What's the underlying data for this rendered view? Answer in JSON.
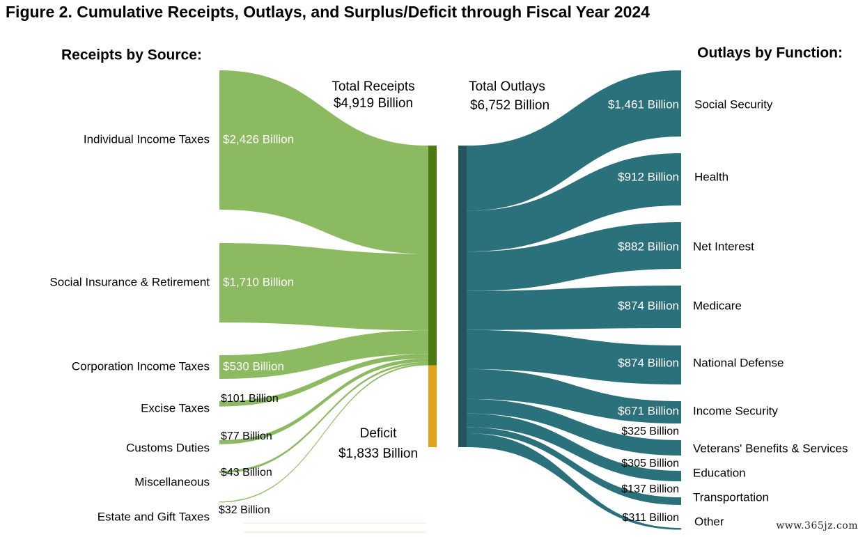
{
  "title": "Figure 2. Cumulative Receipts, Outlays, and Surplus/Deficit through Fiscal Year 2024",
  "watermark": "www.365jz.com",
  "colors": {
    "receipts_flow": "#8cba60",
    "receipts_bar": "#4d7a10",
    "deficit_bar": "#e0a21a",
    "outlays_flow": "#2b717c",
    "outlays_bar": "#23555c"
  },
  "chart_data": {
    "type": "sankey",
    "title": "Figure 2. Cumulative Receipts, Outlays, and Surplus/Deficit through Fiscal Year 2024",
    "units": "Billion",
    "receipts_heading": "Receipts by Source:",
    "outlays_heading": "Outlays by Function:",
    "total_receipts": {
      "label_line1": "Total Receipts",
      "label_line2": "$4,919 Billion",
      "value": 4919
    },
    "total_outlays": {
      "label_line1": "Total Outlays",
      "label_line2": "$6,752 Billion",
      "value": 6752
    },
    "deficit": {
      "label_line1": "Deficit",
      "label_line2": "$1,833 Billion",
      "value": 1833
    },
    "receipts": [
      {
        "name": "Individual Income Taxes",
        "value": 2426,
        "value_label": "$2,426 Billion"
      },
      {
        "name": "Social Insurance & Retirement",
        "value": 1710,
        "value_label": "$1,710 Billion"
      },
      {
        "name": "Corporation Income Taxes",
        "value": 530,
        "value_label": "$530 Billion"
      },
      {
        "name": "Excise Taxes",
        "value": 101,
        "value_label": "$101 Billion"
      },
      {
        "name": "Customs Duties",
        "value": 77,
        "value_label": "$77 Billion"
      },
      {
        "name": "Miscellaneous",
        "value": 43,
        "value_label": "$43 Billion"
      },
      {
        "name": "Estate and Gift Taxes",
        "value": 32,
        "value_label": "$32 Billion"
      }
    ],
    "outlays": [
      {
        "name": "Social Security",
        "value": 1461,
        "value_label": "$1,461 Billion"
      },
      {
        "name": "Health",
        "value": 912,
        "value_label": "$912 Billion"
      },
      {
        "name": "Net Interest",
        "value": 882,
        "value_label": "$882 Billion"
      },
      {
        "name": "Medicare",
        "value": 874,
        "value_label": "$874 Billion"
      },
      {
        "name": "National Defense",
        "value": 874,
        "value_label": "$874 Billion"
      },
      {
        "name": "Income Security",
        "value": 671,
        "value_label": "$671 Billion"
      },
      {
        "name": "Veterans' Benefits & Services",
        "value": 325,
        "value_label": "$325 Billion"
      },
      {
        "name": "Education",
        "value": 305,
        "value_label": "$305 Billion"
      },
      {
        "name": "Transportation",
        "value": 137,
        "value_label": "$137 Billion"
      },
      {
        "name": "Other",
        "value": 311,
        "value_label": "$311 Billion"
      }
    ]
  }
}
